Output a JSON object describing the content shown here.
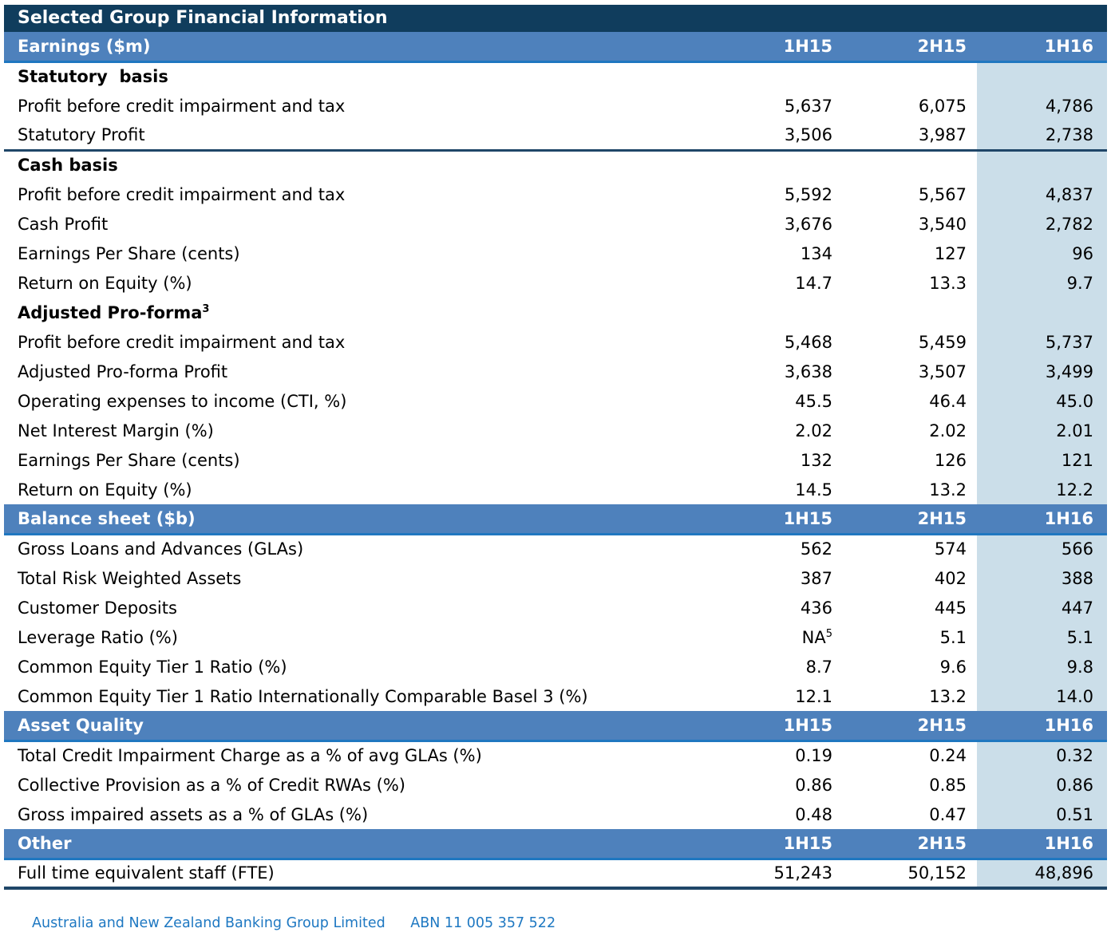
{
  "title": "Selected Group Financial Information",
  "columns": [
    "1H15",
    "2H15",
    "1H16"
  ],
  "colors": {
    "title_band": "#103D5D",
    "section_band": "#4E81BC",
    "section_band_rule": "#1F77C0",
    "highlight_column": "#CBDEE9",
    "divider_rule": "#1F4668",
    "footer_text": "#1E78C2"
  },
  "sections": [
    {
      "label": "Earnings ($m)",
      "rows": [
        {
          "label": "Statutory  basis",
          "bold": true,
          "values": [
            "",
            "",
            ""
          ]
        },
        {
          "label": "Profit before credit impairment and tax",
          "values": [
            "5,637",
            "6,075",
            "4,786"
          ]
        },
        {
          "label": "Statutory Profit",
          "values": [
            "3,506",
            "3,987",
            "2,738"
          ],
          "divider_after": true
        },
        {
          "label": "Cash basis",
          "bold": true,
          "values": [
            "",
            "",
            ""
          ]
        },
        {
          "label": "Profit before credit impairment and tax",
          "values": [
            "5,592",
            "5,567",
            "4,837"
          ]
        },
        {
          "label": "Cash Profit",
          "values": [
            "3,676",
            "3,540",
            "2,782"
          ]
        },
        {
          "label": "Earnings Per Share (cents)",
          "values": [
            "134",
            "127",
            "96"
          ]
        },
        {
          "label": "Return on Equity (%)",
          "values": [
            "14.7",
            "13.3",
            "9.7"
          ]
        },
        {
          "label": "Adjusted Pro-forma",
          "sup": "3",
          "bold": true,
          "values": [
            "",
            "",
            ""
          ]
        },
        {
          "label": "Profit before credit impairment and tax",
          "values": [
            "5,468",
            "5,459",
            "5,737"
          ]
        },
        {
          "label": "Adjusted Pro-forma Profit",
          "values": [
            "3,638",
            "3,507",
            "3,499"
          ]
        },
        {
          "label": "Operating expenses to income (CTI, %)",
          "values": [
            "45.5",
            "46.4",
            "45.0"
          ]
        },
        {
          "label": "Net Interest Margin (%)",
          "values": [
            "2.02",
            "2.02",
            "2.01"
          ]
        },
        {
          "label": "Earnings Per Share (cents)",
          "values": [
            "132",
            "126",
            "121"
          ]
        },
        {
          "label": "Return on Equity (%)",
          "values": [
            "14.5",
            "13.2",
            "12.2"
          ]
        }
      ]
    },
    {
      "label": "Balance sheet ($b)",
      "rows": [
        {
          "label": "Gross Loans and Advances (GLAs)",
          "values": [
            "562",
            "574",
            "566"
          ]
        },
        {
          "label": "Total Risk Weighted Assets",
          "values": [
            "387",
            "402",
            "388"
          ]
        },
        {
          "label": "Customer Deposits",
          "values": [
            "436",
            "445",
            "447"
          ]
        },
        {
          "label": "Leverage Ratio (%)",
          "values": [
            {
              "text": "NA",
              "sup": "5"
            },
            "5.1",
            "5.1"
          ]
        },
        {
          "label": "Common Equity Tier 1 Ratio (%)",
          "values": [
            "8.7",
            "9.6",
            "9.8"
          ]
        },
        {
          "label": "Common Equity Tier 1 Ratio Internationally Comparable Basel 3 (%)",
          "values": [
            "12.1",
            "13.2",
            "14.0"
          ]
        }
      ]
    },
    {
      "label": "Asset Quality",
      "rows": [
        {
          "label": "Total Credit Impairment Charge as a % of avg GLAs (%)",
          "values": [
            "0.19",
            "0.24",
            "0.32"
          ]
        },
        {
          "label": "Collective Provision as a % of Credit RWAs (%)",
          "values": [
            "0.86",
            "0.85",
            "0.86"
          ]
        },
        {
          "label": "Gross impaired assets as a % of GLAs (%)",
          "values": [
            "0.48",
            "0.47",
            "0.51"
          ]
        }
      ]
    },
    {
      "label": "Other",
      "rows": [
        {
          "label": "Full time equivalent staff (FTE)",
          "values": [
            "51,243",
            "50,152",
            "48,896"
          ]
        }
      ]
    }
  ],
  "footer": {
    "company": "Australia and New Zealand Banking Group Limited",
    "abn": "ABN 11 005 357 522"
  }
}
